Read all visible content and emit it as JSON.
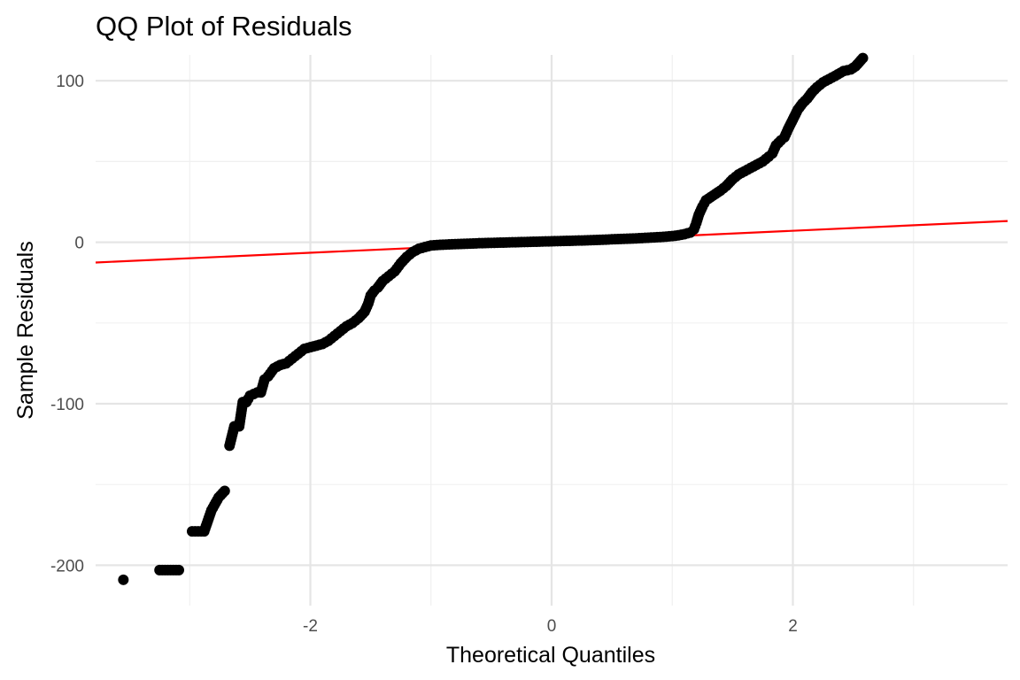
{
  "chart_data": {
    "type": "scatter",
    "title": "QQ Plot of Residuals",
    "xlabel": "Theoretical Quantiles",
    "ylabel": "Sample Residuals",
    "xlim": [
      -3.78,
      3.78
    ],
    "ylim": [
      -225,
      116
    ],
    "x_ticks": [
      -2,
      0,
      2
    ],
    "x_tick_labels": [
      "-2",
      "0",
      "2"
    ],
    "x_minor_ticks": [
      -3,
      -1,
      1,
      3
    ],
    "y_ticks": [
      -200,
      -100,
      0,
      100
    ],
    "y_tick_labels": [
      "-200",
      "-100",
      "0",
      "100"
    ],
    "y_minor_ticks": [
      -150,
      -50,
      50
    ],
    "grid": true,
    "legend": "none",
    "point_color": "#000000",
    "line_color": "#ff0000",
    "reference_line": {
      "intercept": 0.3,
      "slope": 3.4
    },
    "series": [
      {
        "values": [
          [
            -3.55,
            -209
          ],
          [
            -3.25,
            -203
          ],
          [
            -3.09,
            -203
          ],
          [
            -2.98,
            -179
          ],
          [
            -2.88,
            -179
          ],
          [
            -2.82,
            -166
          ],
          [
            -2.76,
            -158
          ],
          [
            -2.71,
            -154
          ],
          [
            -2.67,
            -126
          ],
          [
            -2.63,
            -114
          ],
          [
            -2.59,
            -114
          ],
          [
            -2.56,
            -99
          ],
          [
            -2.53,
            -99
          ],
          [
            -2.5,
            -95
          ],
          [
            -2.47,
            -94
          ],
          [
            -2.44,
            -93
          ],
          [
            -2.41,
            -93
          ],
          [
            -2.38,
            -85
          ],
          [
            -2.35,
            -83
          ],
          [
            -2.3,
            -78
          ],
          [
            -2.25,
            -76
          ],
          [
            -2.2,
            -75
          ],
          [
            -2.15,
            -72
          ],
          [
            -2.1,
            -69
          ],
          [
            -2.05,
            -66
          ],
          [
            -2.0,
            -65
          ],
          [
            -1.95,
            -64
          ],
          [
            -1.9,
            -63
          ],
          [
            -1.85,
            -61
          ],
          [
            -1.8,
            -58
          ],
          [
            -1.75,
            -55
          ],
          [
            -1.7,
            -52
          ],
          [
            -1.65,
            -50
          ],
          [
            -1.6,
            -47
          ],
          [
            -1.55,
            -43
          ],
          [
            -1.52,
            -38
          ],
          [
            -1.5,
            -33
          ],
          [
            -1.47,
            -30
          ],
          [
            -1.44,
            -28
          ],
          [
            -1.4,
            -24
          ],
          [
            -1.35,
            -21
          ],
          [
            -1.3,
            -18
          ],
          [
            -1.25,
            -13
          ],
          [
            -1.2,
            -9
          ],
          [
            -1.15,
            -6
          ],
          [
            -1.1,
            -4
          ],
          [
            -1.05,
            -3
          ],
          [
            -1.0,
            -2
          ],
          [
            -0.9,
            -1.5
          ],
          [
            -0.8,
            -1.2
          ],
          [
            -0.7,
            -0.9
          ],
          [
            -0.6,
            -0.6
          ],
          [
            -0.5,
            -0.4
          ],
          [
            -0.4,
            -0.2
          ],
          [
            -0.3,
            0.0
          ],
          [
            -0.2,
            0.2
          ],
          [
            -0.1,
            0.4
          ],
          [
            0.0,
            0.6
          ],
          [
            0.1,
            0.8
          ],
          [
            0.2,
            1.0
          ],
          [
            0.3,
            1.2
          ],
          [
            0.4,
            1.5
          ],
          [
            0.5,
            1.8
          ],
          [
            0.6,
            2.1
          ],
          [
            0.7,
            2.4
          ],
          [
            0.8,
            2.8
          ],
          [
            0.9,
            3.2
          ],
          [
            1.0,
            3.8
          ],
          [
            1.05,
            4.3
          ],
          [
            1.1,
            5
          ],
          [
            1.15,
            6
          ],
          [
            1.18,
            8
          ],
          [
            1.2,
            12
          ],
          [
            1.22,
            17
          ],
          [
            1.25,
            22
          ],
          [
            1.28,
            26
          ],
          [
            1.32,
            28
          ],
          [
            1.36,
            30
          ],
          [
            1.4,
            32
          ],
          [
            1.45,
            35
          ],
          [
            1.5,
            39
          ],
          [
            1.55,
            42
          ],
          [
            1.6,
            44
          ],
          [
            1.65,
            46
          ],
          [
            1.7,
            48
          ],
          [
            1.75,
            50
          ],
          [
            1.8,
            53
          ],
          [
            1.83,
            55
          ],
          [
            1.86,
            60
          ],
          [
            1.9,
            63
          ],
          [
            1.93,
            65
          ],
          [
            1.96,
            70
          ],
          [
            2.0,
            76
          ],
          [
            2.04,
            82
          ],
          [
            2.08,
            86
          ],
          [
            2.12,
            89
          ],
          [
            2.16,
            93
          ],
          [
            2.2,
            96
          ],
          [
            2.25,
            99
          ],
          [
            2.3,
            101
          ],
          [
            2.35,
            103
          ],
          [
            2.42,
            106
          ],
          [
            2.48,
            107
          ],
          [
            2.52,
            109
          ],
          [
            2.58,
            114
          ]
        ]
      }
    ]
  }
}
